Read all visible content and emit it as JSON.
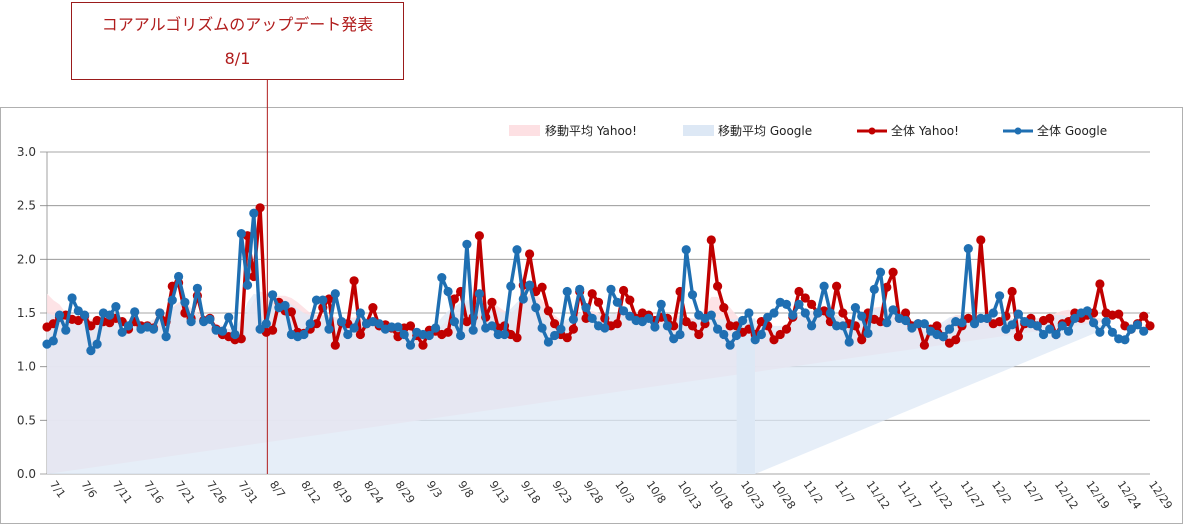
{
  "callout": {
    "title": "コアアルゴリズムのアップデート発表",
    "date": "8/1"
  },
  "colors": {
    "yahoo_line": "#c00000",
    "google_line": "#1f6fb2",
    "yahoo_area": "#fde0e3",
    "google_area": "#dde8f5",
    "gridline": "#888888",
    "callout": "#b01c1c"
  },
  "chart_data": {
    "type": "line",
    "ylim": [
      0,
      3
    ],
    "yticks": [
      "0.0",
      "0.5",
      "1.0",
      "1.5",
      "2.0",
      "2.5",
      "3.0"
    ],
    "grid": true,
    "legend_position": "top-right",
    "legend": [
      "移動平均 Yahoo!",
      "移動平均 Google",
      "全体 Yahoo!",
      "全体 Google"
    ],
    "x_tick_labels": [
      "7/1",
      "7/6",
      "7/11",
      "7/16",
      "7/21",
      "7/26",
      "7/31",
      "8/7",
      "8/12",
      "8/19",
      "8/24",
      "8/29",
      "9/3",
      "9/8",
      "9/13",
      "9/18",
      "9/23",
      "9/28",
      "10/3",
      "10/8",
      "10/13",
      "10/18",
      "10/23",
      "10/28",
      "11/2",
      "11/7",
      "11/12",
      "11/17",
      "11/22",
      "11/27",
      "12/2",
      "12/7",
      "12/12",
      "12/19",
      "12/24",
      "12/29"
    ],
    "annotation": {
      "label": "8/1",
      "x_index": 35
    },
    "google_area_gap": [
      110,
      113
    ],
    "series": [
      {
        "name": "全体 Yahoo!",
        "values": [
          1.37,
          1.4,
          1.46,
          1.48,
          1.44,
          1.43,
          1.47,
          1.38,
          1.43,
          1.42,
          1.41,
          1.45,
          1.42,
          1.35,
          1.42,
          1.38,
          1.38,
          1.36,
          1.5,
          1.42,
          1.75,
          1.78,
          1.5,
          1.45,
          1.66,
          1.43,
          1.45,
          1.35,
          1.3,
          1.28,
          1.25,
          1.26,
          2.22,
          1.84,
          2.48,
          1.32,
          1.34,
          1.6,
          1.52,
          1.51,
          1.32,
          1.31,
          1.35,
          1.4,
          1.55,
          1.63,
          1.2,
          1.41,
          1.4,
          1.8,
          1.3,
          1.4,
          1.55,
          1.38,
          1.39,
          1.36,
          1.28,
          1.36,
          1.38,
          1.29,
          1.2,
          1.34,
          1.33,
          1.3,
          1.32,
          1.63,
          1.7,
          1.42,
          1.46,
          2.22,
          1.46,
          1.6,
          1.36,
          1.38,
          1.3,
          1.27,
          1.76,
          2.05,
          1.7,
          1.74,
          1.52,
          1.4,
          1.3,
          1.27,
          1.35,
          1.7,
          1.45,
          1.68,
          1.6,
          1.45,
          1.38,
          1.4,
          1.71,
          1.62,
          1.45,
          1.5,
          1.48,
          1.43,
          1.46,
          1.45,
          1.38,
          1.7,
          1.42,
          1.38,
          1.3,
          1.4,
          2.18,
          1.75,
          1.55,
          1.38,
          1.38,
          1.32,
          1.35,
          1.3,
          1.42,
          1.38,
          1.25,
          1.3,
          1.35,
          1.46,
          1.7,
          1.64,
          1.58,
          1.5,
          1.52,
          1.42,
          1.75,
          1.5,
          1.4,
          1.38,
          1.25,
          1.5,
          1.44,
          1.42,
          1.74,
          1.88,
          1.45,
          1.5,
          1.38,
          1.4,
          1.2,
          1.35,
          1.38,
          1.28,
          1.22,
          1.25,
          1.38,
          1.45,
          1.42,
          2.18,
          1.45,
          1.4,
          1.42,
          1.47,
          1.7,
          1.28,
          1.4,
          1.45,
          1.38,
          1.43,
          1.45,
          1.3,
          1.4,
          1.42,
          1.5,
          1.45,
          1.48,
          1.5,
          1.77,
          1.5,
          1.48,
          1.49,
          1.38,
          1.35,
          1.4,
          1.47,
          1.38
        ]
      },
      {
        "name": "全体 Google",
        "values": [
          1.21,
          1.24,
          1.48,
          1.34,
          1.64,
          1.52,
          1.48,
          1.15,
          1.21,
          1.5,
          1.48,
          1.56,
          1.32,
          1.38,
          1.51,
          1.35,
          1.37,
          1.35,
          1.5,
          1.28,
          1.62,
          1.84,
          1.6,
          1.42,
          1.73,
          1.42,
          1.44,
          1.34,
          1.33,
          1.46,
          1.3,
          2.24,
          1.76,
          2.43,
          1.35,
          1.4,
          1.67,
          1.55,
          1.57,
          1.3,
          1.28,
          1.3,
          1.4,
          1.62,
          1.62,
          1.35,
          1.68,
          1.42,
          1.3,
          1.36,
          1.5,
          1.4,
          1.42,
          1.4,
          1.35,
          1.37,
          1.37,
          1.3,
          1.2,
          1.32,
          1.3,
          1.29,
          1.36,
          1.83,
          1.7,
          1.42,
          1.29,
          2.14,
          1.34,
          1.68,
          1.36,
          1.38,
          1.3,
          1.3,
          1.75,
          2.09,
          1.63,
          1.76,
          1.55,
          1.36,
          1.23,
          1.29,
          1.35,
          1.7,
          1.44,
          1.72,
          1.55,
          1.45,
          1.38,
          1.36,
          1.72,
          1.6,
          1.52,
          1.47,
          1.43,
          1.42,
          1.45,
          1.37,
          1.58,
          1.38,
          1.26,
          1.3,
          2.09,
          1.67,
          1.48,
          1.45,
          1.48,
          1.35,
          1.3,
          1.2,
          1.29,
          1.43,
          1.5,
          1.25,
          1.3,
          1.46,
          1.5,
          1.6,
          1.58,
          1.48,
          1.58,
          1.5,
          1.38,
          1.5,
          1.75,
          1.5,
          1.38,
          1.38,
          1.23,
          1.55,
          1.47,
          1.31,
          1.72,
          1.88,
          1.41,
          1.53,
          1.45,
          1.43,
          1.36,
          1.4,
          1.4,
          1.33,
          1.3,
          1.28,
          1.35,
          1.42,
          1.41,
          2.1,
          1.4,
          1.45,
          1.45,
          1.5,
          1.66,
          1.35,
          1.39,
          1.49,
          1.42,
          1.4,
          1.38,
          1.3,
          1.35,
          1.3,
          1.38,
          1.33,
          1.45,
          1.5,
          1.52,
          1.41,
          1.32,
          1.42,
          1.32,
          1.26,
          1.25,
          1.35,
          1.39,
          1.33
        ]
      },
      {
        "name": "移動平均 Yahoo!",
        "values": [
          1.68,
          1.62,
          1.58,
          1.5,
          1.48,
          1.46,
          1.45,
          1.44,
          1.43,
          1.42,
          1.42,
          1.42,
          1.42,
          1.42,
          1.41,
          1.41,
          1.42,
          1.43,
          1.46,
          1.5,
          1.55,
          1.6,
          1.6,
          1.55,
          1.5,
          1.46,
          1.43,
          1.4,
          1.38,
          1.35,
          1.35,
          1.38,
          1.5,
          1.62,
          1.7,
          1.68,
          1.66,
          1.66,
          1.66,
          1.64,
          1.6,
          1.55,
          1.5,
          1.48,
          1.48,
          1.48,
          1.46,
          1.45,
          1.45,
          1.46,
          1.45,
          1.44,
          1.44,
          1.43,
          1.4,
          1.38,
          1.36,
          1.35,
          1.34,
          1.33,
          1.32,
          1.32,
          1.33,
          1.38,
          1.45,
          1.5,
          1.55,
          1.6,
          1.62,
          1.62,
          1.6,
          1.6,
          1.56,
          1.52,
          1.5,
          1.55,
          1.62,
          1.68,
          1.68,
          1.62,
          1.55,
          1.48,
          1.43,
          1.42,
          1.45,
          1.5,
          1.52,
          1.52,
          1.5,
          1.48,
          1.48,
          1.5,
          1.52,
          1.5,
          1.48,
          1.47,
          1.45,
          1.45,
          1.45,
          1.45,
          1.46,
          1.48,
          1.46,
          1.45,
          1.45,
          1.55,
          1.65,
          1.65,
          1.6,
          1.55,
          1.48,
          1.42,
          1.4,
          1.38,
          1.36,
          1.35,
          1.34,
          1.33,
          1.36,
          1.4,
          1.45,
          1.5,
          1.52,
          1.5,
          1.5,
          1.5,
          1.48,
          1.44,
          1.42,
          1.42,
          1.45,
          1.5,
          1.55,
          1.56,
          1.54,
          1.5,
          1.45,
          1.42,
          1.38,
          1.36,
          1.34,
          1.33,
          1.35,
          1.38,
          1.45,
          1.48,
          1.48,
          1.47,
          1.46,
          1.46,
          1.45,
          1.45,
          1.45,
          1.45,
          1.45,
          1.44,
          1.44,
          1.44,
          1.45,
          1.46,
          1.48,
          1.5,
          1.52,
          1.53,
          1.52,
          1.5,
          1.48,
          1.46,
          1.45,
          1.44,
          1.43
        ]
      },
      {
        "name": "移動平均 Google",
        "values": [
          1.5,
          1.48,
          1.46,
          1.44,
          1.43,
          1.42,
          1.42,
          1.41,
          1.41,
          1.41,
          1.41,
          1.41,
          1.41,
          1.41,
          1.41,
          1.41,
          1.42,
          1.44,
          1.46,
          1.5,
          1.55,
          1.58,
          1.56,
          1.52,
          1.48,
          1.44,
          1.42,
          1.39,
          1.37,
          1.35,
          1.36,
          1.45,
          1.6,
          1.68,
          1.66,
          1.64,
          1.64,
          1.64,
          1.62,
          1.58,
          1.54,
          1.5,
          1.48,
          1.47,
          1.47,
          1.46,
          1.45,
          1.45,
          1.44,
          1.44,
          1.43,
          1.43,
          1.42,
          1.4,
          1.38,
          1.36,
          1.34,
          1.33,
          1.32,
          1.31,
          1.31,
          1.32,
          1.38,
          1.46,
          1.52,
          1.56,
          1.6,
          1.62,
          1.62,
          1.6,
          1.58,
          1.55,
          1.52,
          1.5,
          1.54,
          1.6,
          1.65,
          1.66,
          1.62,
          1.55,
          1.48,
          1.43,
          1.42,
          1.44,
          1.48,
          1.5,
          1.5,
          1.49,
          1.48,
          1.48,
          1.49,
          1.5,
          1.49,
          1.47,
          1.46,
          1.45,
          1.45,
          1.45,
          1.45,
          1.45,
          1.46,
          1.45,
          1.45,
          1.44,
          1.44,
          1.44,
          1.44,
          1.44,
          1.44,
          1.44,
          1.44,
          1.44,
          1.44,
          1.44,
          1.4,
          1.39,
          1.38,
          1.38,
          1.38,
          1.42,
          1.48,
          1.52,
          1.52,
          1.5,
          1.5,
          1.5,
          1.48,
          1.44,
          1.42,
          1.42,
          1.45,
          1.5,
          1.54,
          1.55,
          1.53,
          1.5,
          1.46,
          1.43,
          1.4,
          1.38,
          1.36,
          1.36,
          1.38,
          1.42,
          1.46,
          1.47,
          1.47,
          1.46,
          1.45,
          1.45,
          1.45,
          1.45,
          1.45,
          1.44,
          1.44,
          1.43,
          1.43,
          1.43,
          1.44,
          1.45,
          1.46,
          1.48,
          1.48,
          1.46,
          1.44,
          1.42,
          1.41,
          1.4,
          1.39,
          1.38,
          1.38
        ]
      }
    ]
  }
}
